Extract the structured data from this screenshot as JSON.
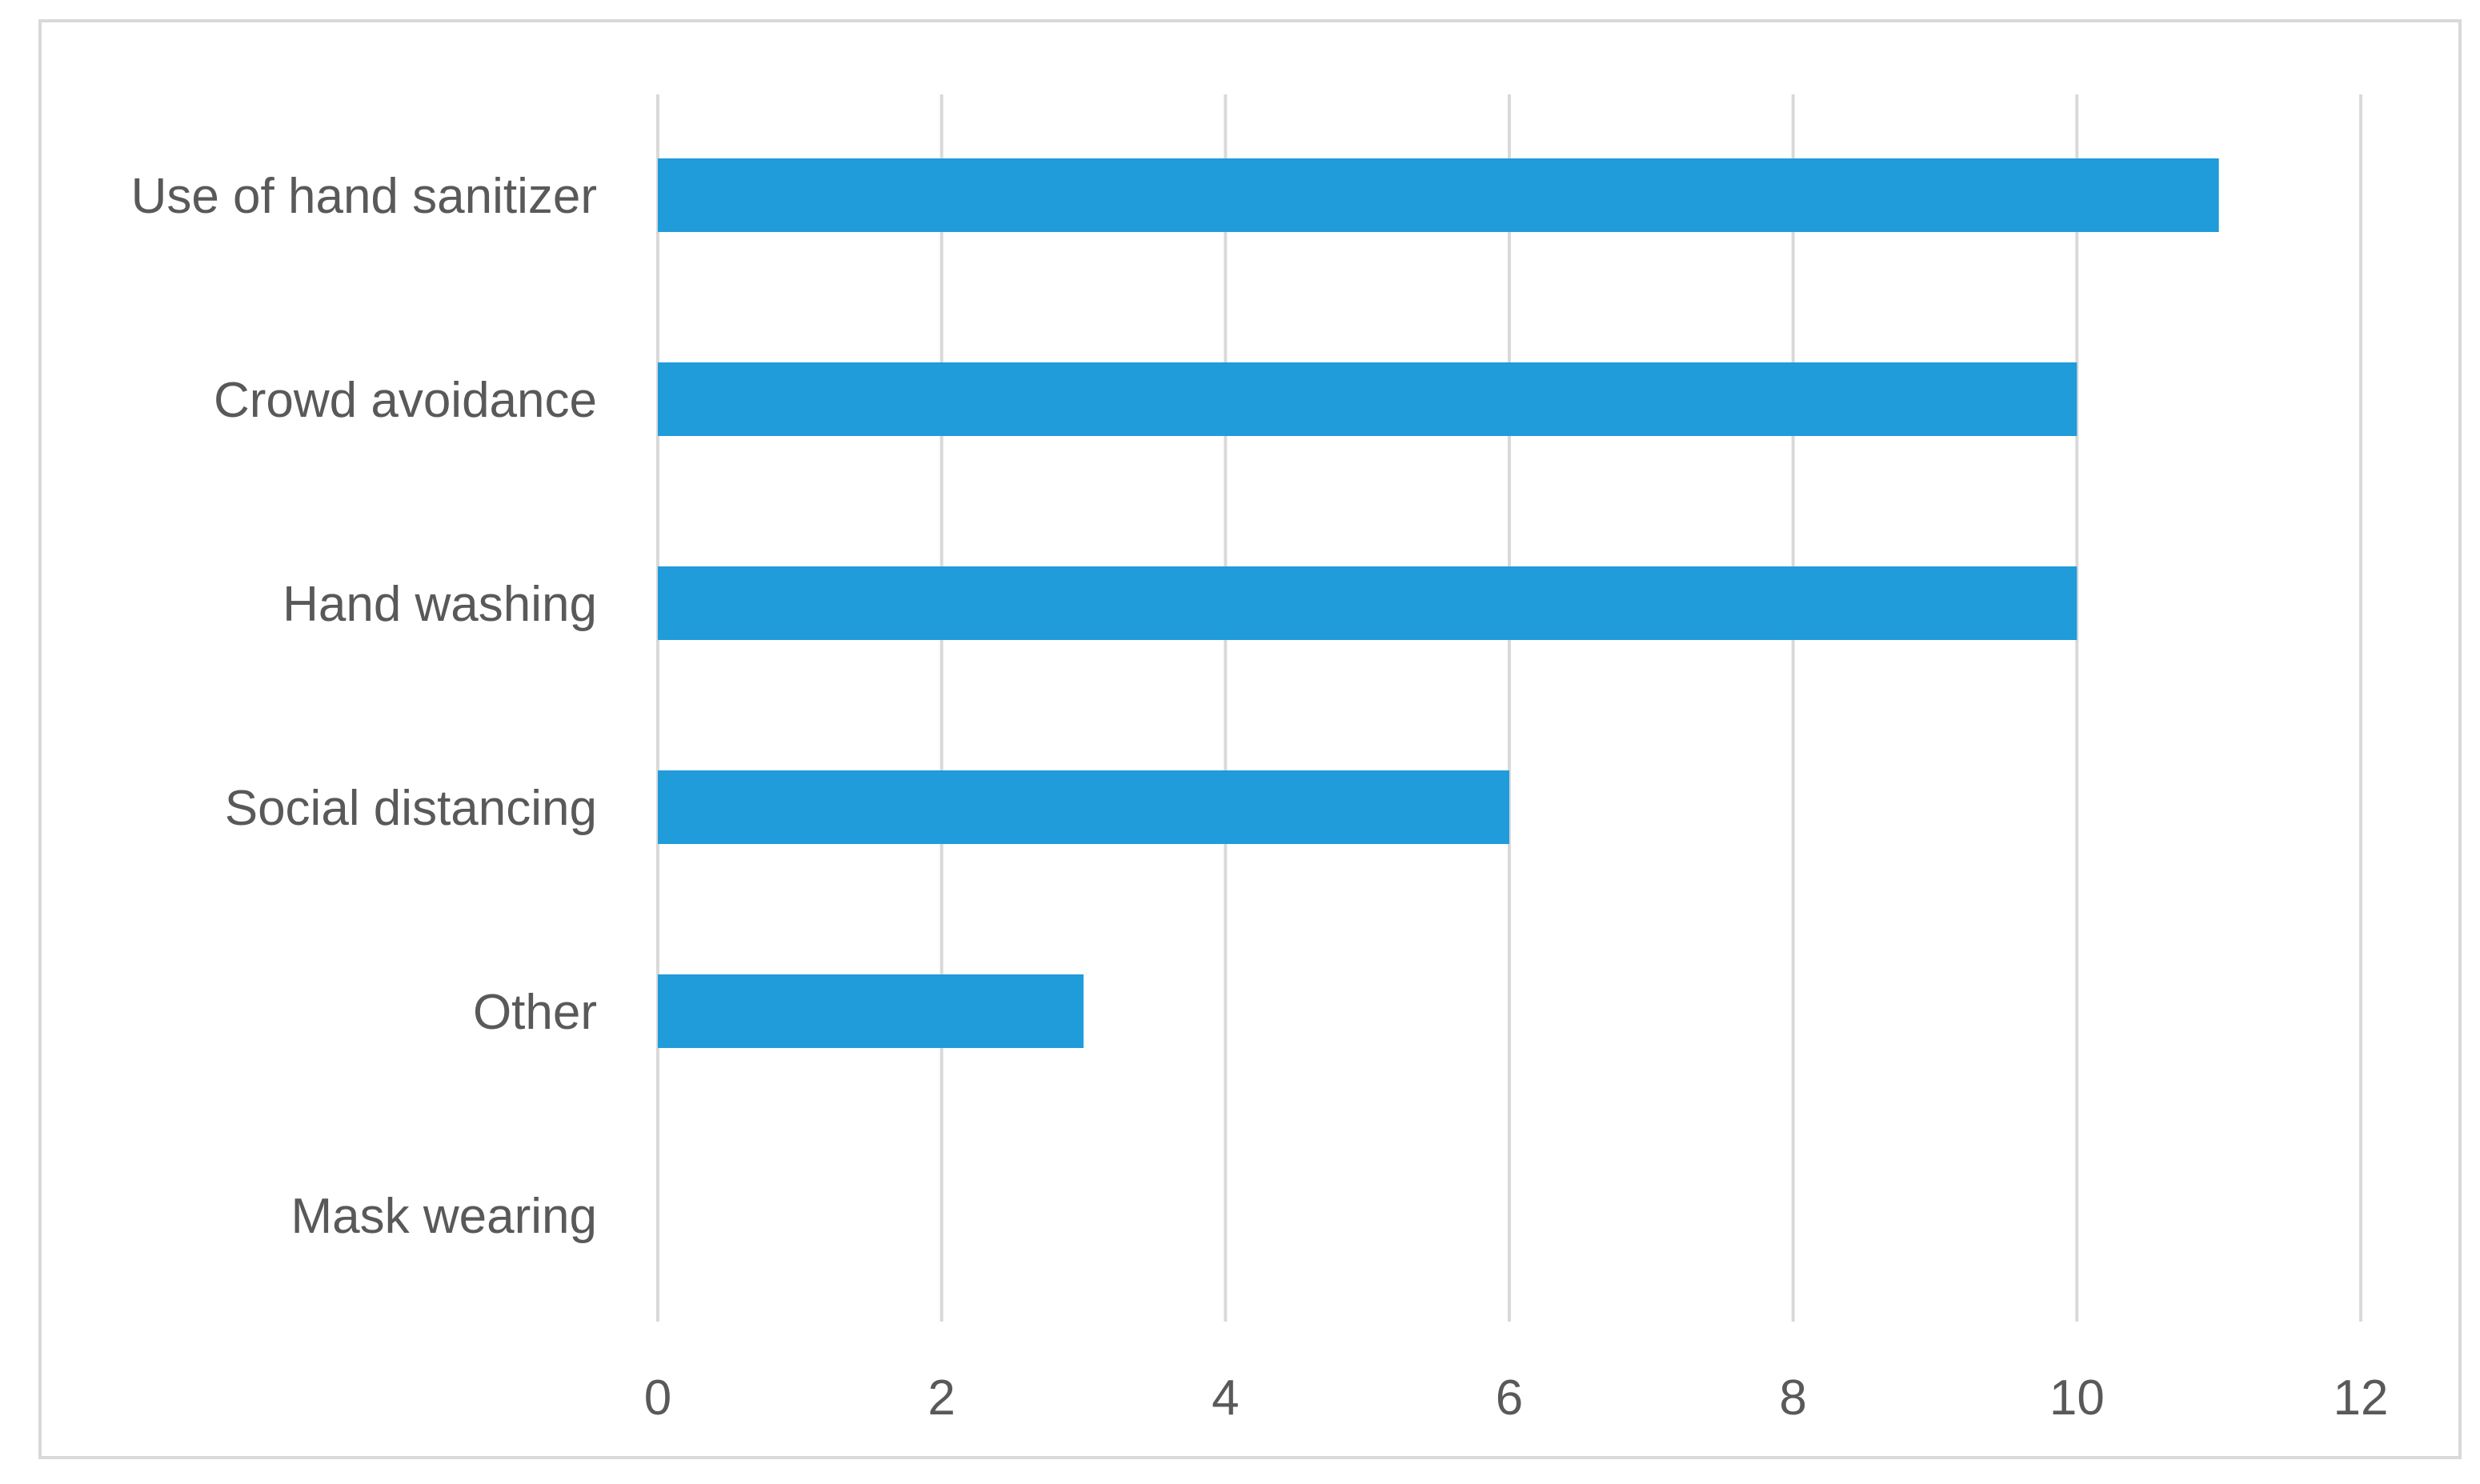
{
  "chart_data": {
    "type": "bar",
    "orientation": "horizontal",
    "categories": [
      "Use of hand sanitizer",
      "Crowd avoidance",
      "Hand washing",
      "Social distancing",
      "Other",
      "Mask wearing"
    ],
    "values": [
      11,
      10,
      10,
      6,
      3,
      0
    ],
    "title": "",
    "xlabel": "",
    "ylabel": "",
    "xlim": [
      0,
      12
    ],
    "xticks": [
      "0",
      "2",
      "4",
      "6",
      "8",
      "10",
      "12"
    ],
    "grid": true,
    "legend": "none",
    "colors": {
      "bar": "#1f9cd9",
      "grid": "#d9d9d9",
      "text": "#595959",
      "border": "#d9d9d9"
    }
  }
}
